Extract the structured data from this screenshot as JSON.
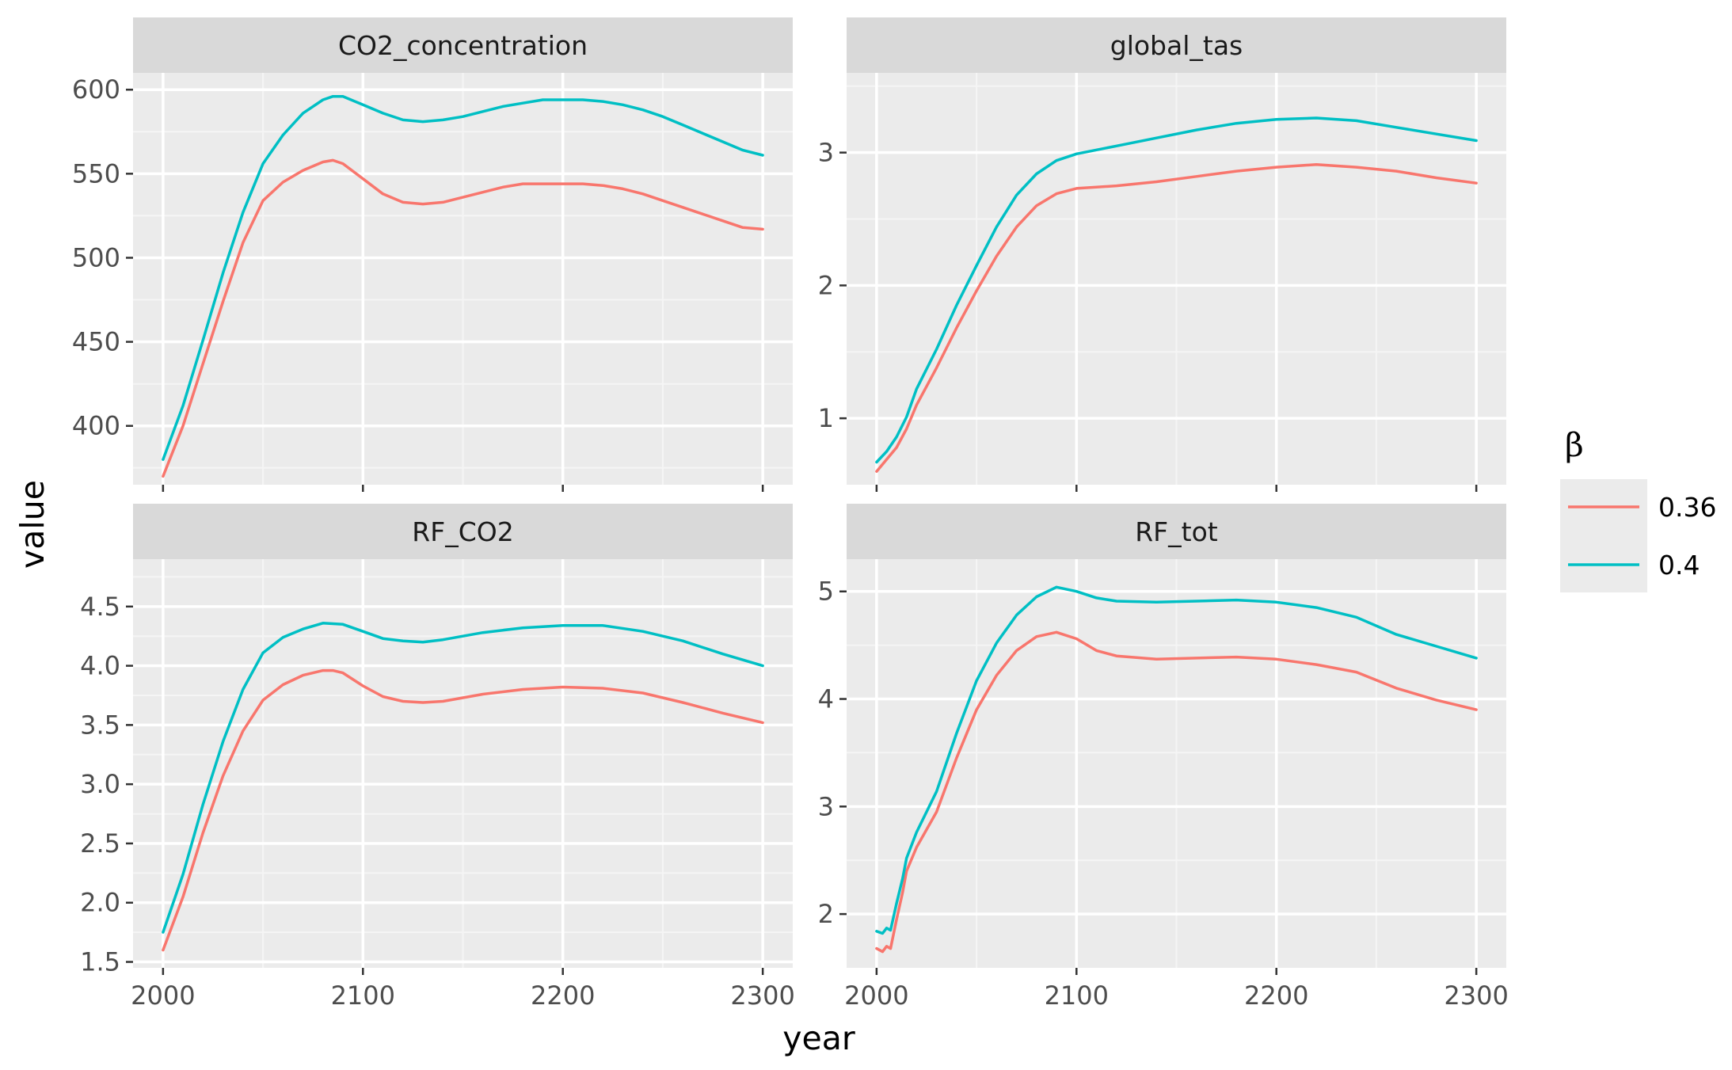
{
  "chart_data": {
    "type": "line",
    "xlabel": "year",
    "ylabel": "value",
    "legend": {
      "title": "β",
      "placement": "right",
      "entries": [
        {
          "label": "0.36",
          "color": "#F8766D"
        },
        {
          "label": "0.4",
          "color": "#00BFC4"
        }
      ]
    },
    "xlim": [
      1985,
      2315
    ],
    "x_breaks": [
      2000,
      2100,
      2200,
      2300
    ],
    "x_tick_labels": [
      "2000",
      "2100",
      "2200",
      "2300"
    ],
    "grid": true,
    "panels": [
      {
        "title": "CO2_concentration",
        "ylim": [
          365,
          610
        ],
        "y_breaks": [
          400,
          450,
          500,
          550,
          600
        ],
        "y_tick_labels": [
          "400",
          "450",
          "500",
          "550",
          "600"
        ],
        "series": [
          {
            "name": "0.36",
            "color": "#F8766D",
            "points": [
              [
                2000,
                370
              ],
              [
                2010,
                400
              ],
              [
                2020,
                437
              ],
              [
                2030,
                474
              ],
              [
                2040,
                509
              ],
              [
                2050,
                534
              ],
              [
                2060,
                545
              ],
              [
                2070,
                552
              ],
              [
                2080,
                557
              ],
              [
                2085,
                558
              ],
              [
                2090,
                556
              ],
              [
                2100,
                547
              ],
              [
                2110,
                538
              ],
              [
                2120,
                533
              ],
              [
                2130,
                532
              ],
              [
                2140,
                533
              ],
              [
                2150,
                536
              ],
              [
                2160,
                539
              ],
              [
                2170,
                542
              ],
              [
                2180,
                544
              ],
              [
                2190,
                544
              ],
              [
                2200,
                544
              ],
              [
                2210,
                544
              ],
              [
                2220,
                543
              ],
              [
                2230,
                541
              ],
              [
                2240,
                538
              ],
              [
                2250,
                534
              ],
              [
                2260,
                530
              ],
              [
                2270,
                526
              ],
              [
                2280,
                522
              ],
              [
                2290,
                518
              ],
              [
                2300,
                517
              ]
            ]
          },
          {
            "name": "0.4",
            "color": "#00BFC4",
            "points": [
              [
                2000,
                380
              ],
              [
                2010,
                412
              ],
              [
                2020,
                451
              ],
              [
                2030,
                491
              ],
              [
                2040,
                527
              ],
              [
                2050,
                556
              ],
              [
                2060,
                573
              ],
              [
                2070,
                586
              ],
              [
                2080,
                594
              ],
              [
                2085,
                596
              ],
              [
                2090,
                596
              ],
              [
                2100,
                591
              ],
              [
                2110,
                586
              ],
              [
                2120,
                582
              ],
              [
                2130,
                581
              ],
              [
                2140,
                582
              ],
              [
                2150,
                584
              ],
              [
                2160,
                587
              ],
              [
                2170,
                590
              ],
              [
                2180,
                592
              ],
              [
                2190,
                594
              ],
              [
                2200,
                594
              ],
              [
                2210,
                594
              ],
              [
                2220,
                593
              ],
              [
                2230,
                591
              ],
              [
                2240,
                588
              ],
              [
                2250,
                584
              ],
              [
                2260,
                579
              ],
              [
                2270,
                574
              ],
              [
                2280,
                569
              ],
              [
                2290,
                564
              ],
              [
                2300,
                561
              ]
            ]
          }
        ]
      },
      {
        "title": "global_tas",
        "ylim": [
          0.5,
          3.6
        ],
        "y_breaks": [
          1,
          2,
          3
        ],
        "y_tick_labels": [
          "1",
          "2",
          "3"
        ],
        "series": [
          {
            "name": "0.36",
            "color": "#F8766D",
            "points": [
              [
                2000,
                0.6
              ],
              [
                2005,
                0.69
              ],
              [
                2010,
                0.78
              ],
              [
                2015,
                0.92
              ],
              [
                2020,
                1.1
              ],
              [
                2030,
                1.38
              ],
              [
                2040,
                1.68
              ],
              [
                2050,
                1.96
              ],
              [
                2060,
                2.22
              ],
              [
                2070,
                2.44
              ],
              [
                2080,
                2.6
              ],
              [
                2090,
                2.69
              ],
              [
                2100,
                2.73
              ],
              [
                2110,
                2.74
              ],
              [
                2120,
                2.75
              ],
              [
                2140,
                2.78
              ],
              [
                2160,
                2.82
              ],
              [
                2180,
                2.86
              ],
              [
                2200,
                2.89
              ],
              [
                2220,
                2.91
              ],
              [
                2240,
                2.89
              ],
              [
                2260,
                2.86
              ],
              [
                2280,
                2.81
              ],
              [
                2300,
                2.77
              ]
            ]
          },
          {
            "name": "0.4",
            "color": "#00BFC4",
            "points": [
              [
                2000,
                0.67
              ],
              [
                2005,
                0.75
              ],
              [
                2010,
                0.86
              ],
              [
                2015,
                1.01
              ],
              [
                2020,
                1.22
              ],
              [
                2030,
                1.52
              ],
              [
                2040,
                1.85
              ],
              [
                2050,
                2.15
              ],
              [
                2060,
                2.44
              ],
              [
                2070,
                2.68
              ],
              [
                2080,
                2.84
              ],
              [
                2090,
                2.94
              ],
              [
                2100,
                2.99
              ],
              [
                2110,
                3.02
              ],
              [
                2120,
                3.05
              ],
              [
                2140,
                3.11
              ],
              [
                2160,
                3.17
              ],
              [
                2180,
                3.22
              ],
              [
                2200,
                3.25
              ],
              [
                2220,
                3.26
              ],
              [
                2240,
                3.24
              ],
              [
                2260,
                3.19
              ],
              [
                2280,
                3.14
              ],
              [
                2300,
                3.09
              ]
            ]
          }
        ]
      },
      {
        "title": "RF_CO2",
        "ylim": [
          1.45,
          4.9
        ],
        "y_breaks": [
          1.5,
          2.0,
          2.5,
          3.0,
          3.5,
          4.0,
          4.5
        ],
        "y_tick_labels": [
          "1.5",
          "2.0",
          "2.5",
          "3.0",
          "3.5",
          "4.0",
          "4.5"
        ],
        "series": [
          {
            "name": "0.36",
            "color": "#F8766D",
            "points": [
              [
                2000,
                1.6
              ],
              [
                2010,
                2.05
              ],
              [
                2020,
                2.59
              ],
              [
                2030,
                3.07
              ],
              [
                2040,
                3.45
              ],
              [
                2050,
                3.71
              ],
              [
                2060,
                3.84
              ],
              [
                2070,
                3.92
              ],
              [
                2080,
                3.96
              ],
              [
                2085,
                3.96
              ],
              [
                2090,
                3.94
              ],
              [
                2100,
                3.83
              ],
              [
                2110,
                3.74
              ],
              [
                2120,
                3.7
              ],
              [
                2130,
                3.69
              ],
              [
                2140,
                3.7
              ],
              [
                2150,
                3.73
              ],
              [
                2160,
                3.76
              ],
              [
                2180,
                3.8
              ],
              [
                2200,
                3.82
              ],
              [
                2220,
                3.81
              ],
              [
                2240,
                3.77
              ],
              [
                2260,
                3.69
              ],
              [
                2280,
                3.6
              ],
              [
                2300,
                3.52
              ]
            ]
          },
          {
            "name": "0.4",
            "color": "#00BFC4",
            "points": [
              [
                2000,
                1.75
              ],
              [
                2010,
                2.24
              ],
              [
                2020,
                2.83
              ],
              [
                2030,
                3.36
              ],
              [
                2040,
                3.8
              ],
              [
                2050,
                4.11
              ],
              [
                2060,
                4.24
              ],
              [
                2070,
                4.31
              ],
              [
                2080,
                4.36
              ],
              [
                2090,
                4.35
              ],
              [
                2100,
                4.29
              ],
              [
                2110,
                4.23
              ],
              [
                2120,
                4.21
              ],
              [
                2130,
                4.2
              ],
              [
                2140,
                4.22
              ],
              [
                2150,
                4.25
              ],
              [
                2160,
                4.28
              ],
              [
                2180,
                4.32
              ],
              [
                2200,
                4.34
              ],
              [
                2220,
                4.34
              ],
              [
                2240,
                4.29
              ],
              [
                2260,
                4.21
              ],
              [
                2280,
                4.1
              ],
              [
                2300,
                4.0
              ]
            ]
          }
        ]
      },
      {
        "title": "RF_tot",
        "ylim": [
          1.5,
          5.3
        ],
        "y_breaks": [
          2,
          3,
          4,
          5
        ],
        "y_tick_labels": [
          "2",
          "3",
          "4",
          "5"
        ],
        "series": [
          {
            "name": "0.36",
            "color": "#F8766D",
            "points": [
              [
                2000,
                1.68
              ],
              [
                2003,
                1.65
              ],
              [
                2005,
                1.7
              ],
              [
                2007,
                1.68
              ],
              [
                2010,
                1.95
              ],
              [
                2013,
                2.2
              ],
              [
                2015,
                2.4
              ],
              [
                2020,
                2.62
              ],
              [
                2030,
                2.95
              ],
              [
                2040,
                3.45
              ],
              [
                2050,
                3.9
              ],
              [
                2060,
                4.22
              ],
              [
                2070,
                4.45
              ],
              [
                2080,
                4.58
              ],
              [
                2090,
                4.62
              ],
              [
                2100,
                4.56
              ],
              [
                2110,
                4.45
              ],
              [
                2120,
                4.4
              ],
              [
                2140,
                4.37
              ],
              [
                2160,
                4.38
              ],
              [
                2180,
                4.39
              ],
              [
                2200,
                4.37
              ],
              [
                2220,
                4.32
              ],
              [
                2240,
                4.25
              ],
              [
                2260,
                4.1
              ],
              [
                2280,
                3.99
              ],
              [
                2300,
                3.9
              ]
            ]
          },
          {
            "name": "0.4",
            "color": "#00BFC4",
            "points": [
              [
                2000,
                1.84
              ],
              [
                2003,
                1.82
              ],
              [
                2005,
                1.87
              ],
              [
                2007,
                1.85
              ],
              [
                2010,
                2.1
              ],
              [
                2013,
                2.33
              ],
              [
                2015,
                2.52
              ],
              [
                2020,
                2.76
              ],
              [
                2030,
                3.14
              ],
              [
                2040,
                3.68
              ],
              [
                2050,
                4.17
              ],
              [
                2060,
                4.52
              ],
              [
                2070,
                4.78
              ],
              [
                2080,
                4.95
              ],
              [
                2090,
                5.04
              ],
              [
                2100,
                5.0
              ],
              [
                2110,
                4.94
              ],
              [
                2120,
                4.91
              ],
              [
                2140,
                4.9
              ],
              [
                2160,
                4.91
              ],
              [
                2180,
                4.92
              ],
              [
                2200,
                4.9
              ],
              [
                2220,
                4.85
              ],
              [
                2240,
                4.76
              ],
              [
                2260,
                4.6
              ],
              [
                2280,
                4.49
              ],
              [
                2300,
                4.38
              ]
            ]
          }
        ]
      }
    ]
  }
}
